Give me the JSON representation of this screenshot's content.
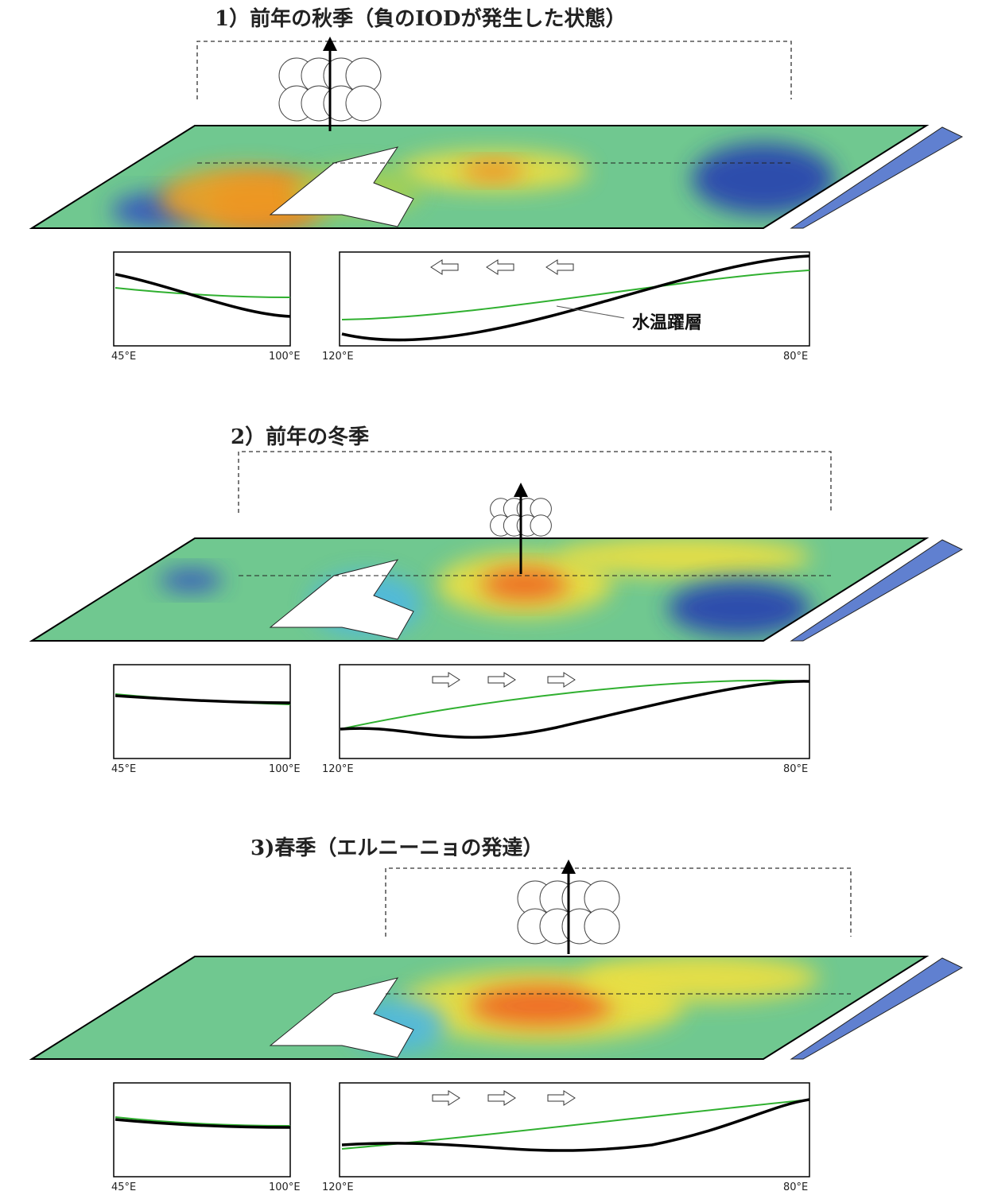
{
  "panels": [
    {
      "title": "1）前年の秋季（負のIODが発生した状態）",
      "axis_labels": [
        "45°E",
        "100°E",
        "120°E",
        "80°E"
      ],
      "annotation": "水温躍層"
    },
    {
      "title": "2）前年の冬季",
      "axis_labels": [
        "45°E",
        "100°E",
        "120°E",
        "80°E"
      ]
    },
    {
      "title": "3)春季（エルニーニョの発達）",
      "axis_labels": [
        "45°E",
        "100°E",
        "120°E",
        "80°E"
      ]
    }
  ]
}
